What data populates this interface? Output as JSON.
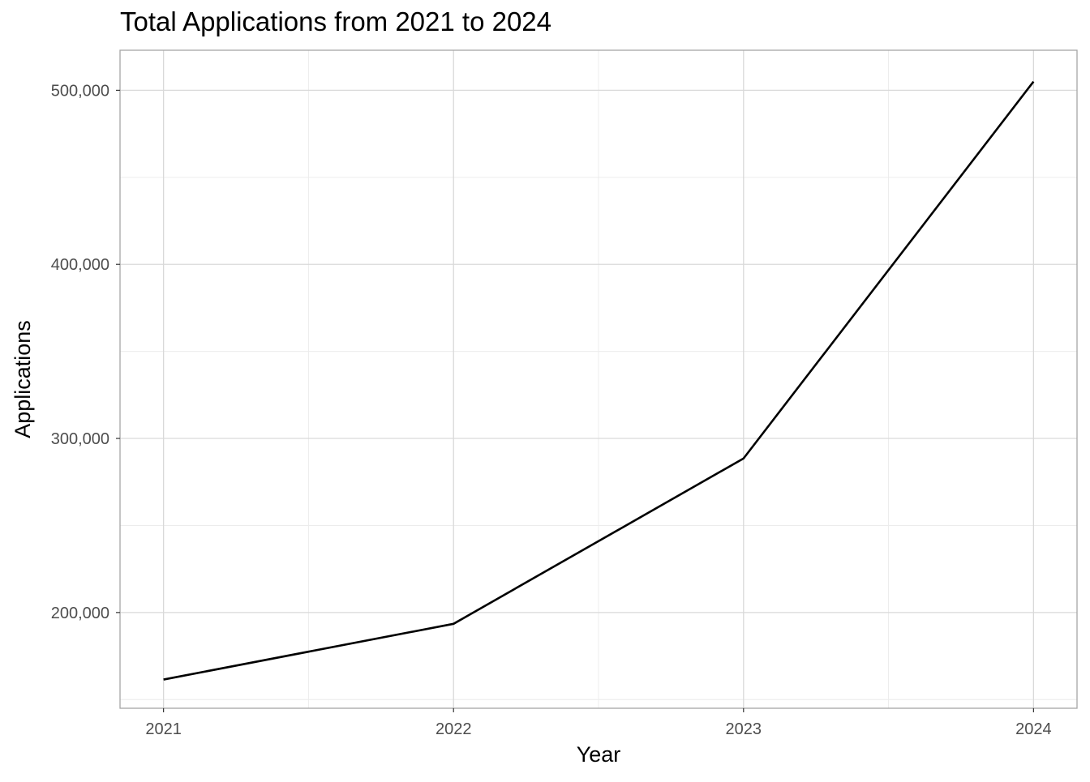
{
  "chart_data": {
    "type": "line",
    "title": "Total Applications from 2021 to 2024",
    "xlabel": "Year",
    "ylabel": "Applications",
    "x": [
      2021,
      2022,
      2023,
      2024
    ],
    "x_tick_labels": [
      "2021",
      "2022",
      "2023",
      "2024"
    ],
    "series": [
      {
        "values": [
          161500,
          193500,
          288500,
          505000
        ],
        "color": "#000000"
      }
    ],
    "xlim": [
      2020.85,
      2024.15
    ],
    "ylim": [
      145000,
      523000
    ],
    "y_ticks": [
      200000,
      300000,
      400000,
      500000
    ],
    "y_tick_labels": [
      "200,000",
      "300,000",
      "400,000",
      "500,000"
    ],
    "y_minor_ticks": [
      150000,
      250000,
      350000,
      450000
    ],
    "x_minor_ticks": [
      2021.5,
      2022.5,
      2023.5
    ],
    "grid": true,
    "legend": "none",
    "colors": {
      "panel_border": "#a6a6a6",
      "grid_major": "#d9d9d9",
      "grid_minor": "#ececec",
      "tick_text": "#4d4d4d",
      "axis_title": "#000000"
    }
  }
}
